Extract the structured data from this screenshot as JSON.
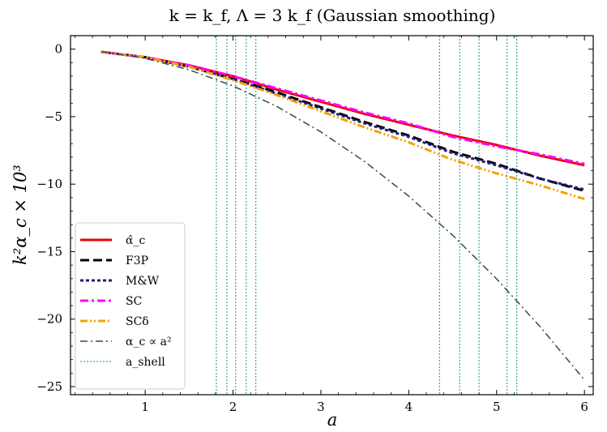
{
  "chart_data": {
    "type": "line",
    "title": "k = k_f, Λ = 3 k_f (Gaussian smoothing)",
    "xlabel": "a",
    "ylabel": "k²α_c × 10³",
    "xlim": [
      0.15,
      6.1
    ],
    "ylim": [
      -25.6,
      1.0
    ],
    "xticks": [
      1,
      2,
      3,
      4,
      5,
      6
    ],
    "yticks": [
      0,
      -5,
      -10,
      -15,
      -20,
      -25
    ],
    "grid": false,
    "legend_position": "lower-left",
    "x": [
      0.5,
      1.0,
      1.5,
      2.0,
      2.5,
      3.0,
      3.5,
      4.0,
      4.5,
      5.0,
      5.5,
      6.0
    ],
    "series": [
      {
        "name": "α̂_c",
        "color": "#e8000b",
        "dash": "solid",
        "width": 3,
        "values": [
          -0.2,
          -0.6,
          -1.2,
          -2.0,
          -3.0,
          -3.9,
          -4.8,
          -5.6,
          -6.4,
          -7.1,
          -7.9,
          -8.6
        ]
      },
      {
        "name": "F3P",
        "color": "#000000",
        "dash": "dashed",
        "width": 3,
        "values": [
          -0.2,
          -0.6,
          -1.3,
          -2.2,
          -3.2,
          -4.3,
          -5.4,
          -6.4,
          -7.6,
          -8.5,
          -9.6,
          -10.5
        ]
      },
      {
        "name": "M&W",
        "color": "#1f1f7a",
        "dash": "dotted",
        "width": 3,
        "values": [
          -0.2,
          -0.6,
          -1.3,
          -2.2,
          -3.3,
          -4.4,
          -5.5,
          -6.5,
          -7.7,
          -8.6,
          -9.6,
          -10.4
        ]
      },
      {
        "name": "SC",
        "color": "#ff00ff",
        "dash": "dashdot",
        "width": 3,
        "values": [
          -0.2,
          -0.6,
          -1.2,
          -2.0,
          -2.9,
          -3.8,
          -4.7,
          -5.5,
          -6.5,
          -7.2,
          -7.8,
          -8.5
        ]
      },
      {
        "name": "SCδ",
        "color": "#f5a300",
        "dash": "dashdotdot",
        "width": 3,
        "values": [
          -0.2,
          -0.6,
          -1.3,
          -2.3,
          -3.4,
          -4.6,
          -5.8,
          -6.9,
          -8.2,
          -9.2,
          -10.1,
          -11.1
        ]
      },
      {
        "name": "α_c ∝ a²",
        "color": "#2f4f4f",
        "dash": "dashdot-long",
        "width": 1.5,
        "values": [
          -0.17,
          -0.68,
          -1.53,
          -2.72,
          -4.25,
          -6.13,
          -8.34,
          -10.89,
          -13.79,
          -17.02,
          -20.6,
          -24.51
        ]
      }
    ],
    "shell_lines": {
      "name": "a_shell",
      "color": "#1a8f8f",
      "x": [
        1.81,
        1.93,
        2.03,
        2.15,
        2.26,
        4.35,
        4.58,
        4.8,
        5.12,
        5.23
      ]
    }
  }
}
